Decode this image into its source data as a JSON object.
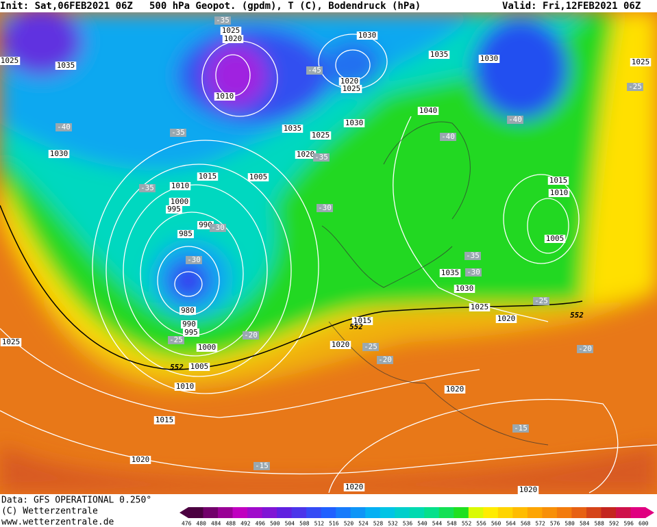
{
  "header": {
    "init": "Init: Sat,06FEB2021 06Z",
    "title": "500 hPa Geopot. (gpdm), T (C), Bodendruck (hPa)",
    "valid": "Valid: Fri,12FEB2021 06Z"
  },
  "footer": {
    "data": "Data: GFS OPERATIONAL 0.250°",
    "copyright": "(C) Wetterzentrale",
    "url": "www.wetterzentrale.de"
  },
  "colorbar": {
    "labels": [
      476,
      480,
      484,
      488,
      492,
      496,
      500,
      504,
      508,
      512,
      516,
      520,
      524,
      528,
      532,
      536,
      540,
      544,
      548,
      552,
      556,
      560,
      564,
      568,
      572,
      576,
      580,
      584,
      588,
      592,
      596,
      600
    ]
  },
  "pressure_labels": [
    "1025",
    "1020",
    "1035",
    "1025",
    "1010",
    "1030",
    "1035",
    "1030",
    "1025",
    "1020",
    "1025",
    "1035",
    "1025",
    "1030",
    "1040",
    "1020",
    "1030",
    "1015",
    "1005",
    "1010",
    "1000",
    "995",
    "990",
    "985",
    "1015",
    "1010",
    "1005",
    "1035",
    "1030",
    "1025",
    "1020",
    "980",
    "990",
    "995",
    "1000",
    "1005",
    "1010",
    "1015",
    "1020",
    "1020",
    "1025",
    "1015",
    "1020",
    "1020",
    "1020"
  ],
  "temperature_labels": [
    "-35",
    "-45",
    "-25",
    "-40",
    "-35",
    "-40",
    "-40",
    "-35",
    "-35",
    "-30",
    "-30",
    "-30",
    "-35",
    "-30",
    "-25",
    "-25",
    "-20",
    "-25",
    "-20",
    "-20",
    "-15",
    "-15"
  ],
  "geopotential_labels": [
    "552",
    "552",
    "552"
  ]
}
